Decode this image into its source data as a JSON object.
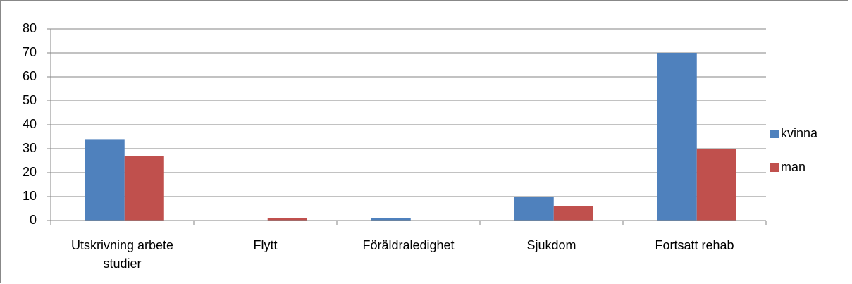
{
  "chart_data": {
    "type": "bar",
    "categories": [
      "Utskrivning arbete studier",
      "Flytt",
      "Föräldraledighet",
      "Sjukdom",
      "Fortsatt rehab"
    ],
    "series": [
      {
        "name": "kvinna",
        "color": "#4f81bd",
        "values": [
          34,
          0,
          1,
          10,
          70
        ]
      },
      {
        "name": "man",
        "color": "#c0504d",
        "values": [
          27,
          1,
          0,
          6,
          30
        ]
      }
    ],
    "ylim": [
      0,
      80
    ],
    "yticks": [
      0,
      10,
      20,
      30,
      40,
      50,
      60,
      70,
      80
    ],
    "grid": true,
    "legend": "right"
  }
}
